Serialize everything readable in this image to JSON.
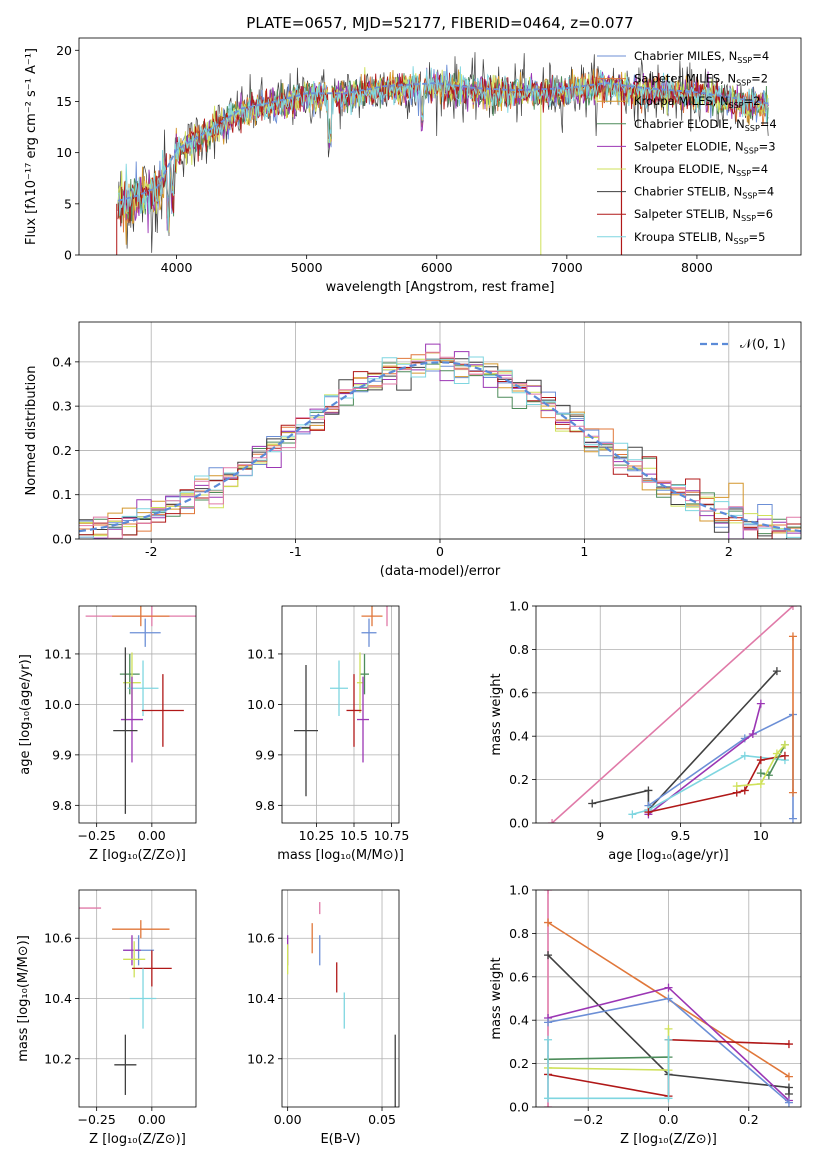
{
  "chart_data": [
    {
      "id": "spectrum",
      "type": "line",
      "title": "PLATE=0657, MJD=52177, FIBERID=0464, z=0.077",
      "xlabel": "wavelength [Angstrom, rest frame]",
      "ylabel": "Flux [fλ10⁻¹⁷ erg cm⁻² s⁻¹ A⁻¹]",
      "xlim": [
        3250,
        8800
      ],
      "ylim": [
        0,
        21.2
      ],
      "xticks": [
        4000,
        5000,
        6000,
        7000,
        8000
      ],
      "yticks": [
        0,
        5,
        10,
        15,
        20
      ],
      "grid": false,
      "legend_position": "right",
      "continuum": [
        {
          "x": 3550,
          "y": 5.0
        },
        {
          "x": 3700,
          "y": 5.5
        },
        {
          "x": 3850,
          "y": 6.3
        },
        {
          "x": 4000,
          "y": 10.0
        },
        {
          "x": 4200,
          "y": 11.5
        },
        {
          "x": 4500,
          "y": 14.0
        },
        {
          "x": 4800,
          "y": 14.8
        },
        {
          "x": 5000,
          "y": 15.5
        },
        {
          "x": 5300,
          "y": 15.5
        },
        {
          "x": 5600,
          "y": 16.2
        },
        {
          "x": 6000,
          "y": 16.5
        },
        {
          "x": 6300,
          "y": 16.0
        },
        {
          "x": 6600,
          "y": 15.8
        },
        {
          "x": 7000,
          "y": 16.0
        },
        {
          "x": 7300,
          "y": 16.5
        },
        {
          "x": 7600,
          "y": 16.0
        },
        {
          "x": 8000,
          "y": 15.6
        },
        {
          "x": 8300,
          "y": 15.0
        },
        {
          "x": 8550,
          "y": 14.5
        }
      ],
      "series": [
        {
          "name": "Chabrier MILES",
          "nssp": "4",
          "color": "#6c8fd6"
        },
        {
          "name": "Salpeter MILES",
          "nssp": "2",
          "color": "#e0773a"
        },
        {
          "name": "Kroupa MILES",
          "nssp": "2",
          "color": "#d4962c"
        },
        {
          "name": "Chabrier ELODIE",
          "nssp": "4",
          "color": "#4d8c5a"
        },
        {
          "name": "Salpeter ELODIE",
          "nssp": "3",
          "color": "#9b36b4"
        },
        {
          "name": "Kroupa ELODIE",
          "nssp": "4",
          "color": "#cfe15a"
        },
        {
          "name": "Chabrier STELIB",
          "nssp": "4",
          "color": "#404040"
        },
        {
          "name": "Salpeter STELIB",
          "nssp": "6",
          "color": "#b01818"
        },
        {
          "name": "Kroupa STELIB",
          "nssp": "5",
          "color": "#7fd6e0"
        }
      ]
    },
    {
      "id": "residuals",
      "type": "histogram",
      "xlabel": "(data-model)/error",
      "ylabel": "Normed distribution",
      "xlim": [
        -2.5,
        2.5
      ],
      "ylim": [
        0,
        0.49
      ],
      "xticks": [
        -2,
        -1,
        0,
        1,
        2
      ],
      "yticks": [
        0.0,
        0.1,
        0.2,
        0.3,
        0.4
      ],
      "grid": true,
      "legend_label": "𝒩(0, 1)",
      "legend_position": "top-right",
      "bin_width": 0.1,
      "series_colors": [
        "#6c8fd6",
        "#e0773a",
        "#d4962c",
        "#4d8c5a",
        "#9b36b4",
        "#cfe15a",
        "#404040",
        "#b01818",
        "#7fd6e0",
        "#e07aa8"
      ]
    },
    {
      "id": "age_vs_Z",
      "type": "errorbar",
      "xlabel": "Z [log₁₀(Z/Z⊙)]",
      "ylabel": "age  [log₁₀(age/yr)]",
      "xlim": [
        -0.33,
        0.2
      ],
      "ylim": [
        9.765,
        10.195
      ],
      "xticks": [
        -0.25,
        0.0
      ],
      "xticklabels": [
        "−0.25",
        "0.00"
      ],
      "yticks": [
        9.8,
        9.9,
        10.0,
        10.1
      ],
      "grid": true,
      "points": [
        {
          "x": 0.0,
          "y": 10.175,
          "xerr": 0.3,
          "yerr": 0.02,
          "color": "#e07aa8"
        },
        {
          "x": -0.05,
          "y": 10.175,
          "xerr": 0.13,
          "yerr": 0.02,
          "color": "#e0773a"
        },
        {
          "x": -0.03,
          "y": 10.142,
          "xerr": 0.07,
          "yerr": 0.028,
          "color": "#6c8fd6"
        },
        {
          "x": -0.1,
          "y": 10.06,
          "xerr": 0.045,
          "yerr": 0.04,
          "color": "#4d8c5a"
        },
        {
          "x": -0.09,
          "y": 10.043,
          "xerr": 0.04,
          "yerr": 0.06,
          "color": "#cfe15a"
        },
        {
          "x": -0.04,
          "y": 10.032,
          "xerr": 0.07,
          "yerr": 0.055,
          "color": "#7fd6e0"
        },
        {
          "x": 0.05,
          "y": 9.988,
          "xerr": 0.095,
          "yerr": 0.072,
          "color": "#b01818"
        },
        {
          "x": -0.09,
          "y": 9.97,
          "xerr": 0.05,
          "yerr": 0.085,
          "color": "#9b36b4"
        },
        {
          "x": -0.12,
          "y": 9.948,
          "xerr": 0.055,
          "yerr": 0.165,
          "color": "#404040"
        }
      ]
    },
    {
      "id": "age_vs_mass",
      "type": "errorbar",
      "xlabel": "mass [log₁₀(M/M⊙)]",
      "ylabel": "",
      "xlim": [
        10.02,
        10.8
      ],
      "ylim": [
        9.765,
        10.195
      ],
      "xticks": [
        10.25,
        10.5,
        10.75
      ],
      "yticks": [
        9.8,
        9.9,
        10.0,
        10.1
      ],
      "grid": true,
      "points": [
        {
          "x": 10.72,
          "y": 10.175,
          "xerr": 0.0,
          "yerr": 0.02,
          "color": "#e07aa8"
        },
        {
          "x": 10.62,
          "y": 10.175,
          "xerr": 0.07,
          "yerr": 0.02,
          "color": "#e0773a"
        },
        {
          "x": 10.6,
          "y": 10.142,
          "xerr": 0.05,
          "yerr": 0.028,
          "color": "#6c8fd6"
        },
        {
          "x": 10.57,
          "y": 10.06,
          "xerr": 0.03,
          "yerr": 0.04,
          "color": "#4d8c5a"
        },
        {
          "x": 10.54,
          "y": 10.043,
          "xerr": 0.02,
          "yerr": 0.06,
          "color": "#cfe15a"
        },
        {
          "x": 10.4,
          "y": 10.032,
          "xerr": 0.06,
          "yerr": 0.055,
          "color": "#7fd6e0"
        },
        {
          "x": 10.5,
          "y": 9.988,
          "xerr": 0.05,
          "yerr": 0.072,
          "color": "#b01818"
        },
        {
          "x": 10.56,
          "y": 9.97,
          "xerr": 0.04,
          "yerr": 0.085,
          "color": "#9b36b4"
        },
        {
          "x": 10.18,
          "y": 9.948,
          "xerr": 0.08,
          "yerr": 0.13,
          "color": "#404040"
        }
      ]
    },
    {
      "id": "mw_vs_age",
      "type": "line",
      "xlabel": "age  [log₁₀(age/yr)]",
      "ylabel": "mass weight",
      "xlim": [
        8.6,
        10.25
      ],
      "ylim": [
        0,
        1.0
      ],
      "xticks": [
        9.0,
        9.5,
        10.0
      ],
      "yticks": [
        0.0,
        0.2,
        0.4,
        0.6,
        0.8,
        1.0
      ],
      "grid": true,
      "lines": [
        {
          "color": "#e07aa8",
          "pts": [
            [
              8.7,
              0.0
            ],
            [
              10.2,
              1.0
            ]
          ]
        },
        {
          "color": "#404040",
          "pts": [
            [
              8.95,
              0.09
            ],
            [
              9.3,
              0.15
            ],
            [
              9.3,
              0.06
            ],
            [
              10.1,
              0.7
            ]
          ]
        },
        {
          "color": "#6c8fd6",
          "pts": [
            [
              9.3,
              0.08
            ],
            [
              9.9,
              0.39
            ],
            [
              10.2,
              0.5
            ],
            [
              10.2,
              0.02
            ]
          ]
        },
        {
          "color": "#9b36b4",
          "pts": [
            [
              9.3,
              0.04
            ],
            [
              9.95,
              0.41
            ],
            [
              10.0,
              0.55
            ]
          ]
        },
        {
          "color": "#7fd6e0",
          "pts": [
            [
              9.2,
              0.04
            ],
            [
              9.3,
              0.06
            ],
            [
              9.9,
              0.31
            ],
            [
              10.15,
              0.29
            ]
          ]
        },
        {
          "color": "#b01818",
          "pts": [
            [
              9.3,
              0.05
            ],
            [
              9.85,
              0.14
            ],
            [
              9.9,
              0.15
            ],
            [
              10.0,
              0.29
            ],
            [
              10.15,
              0.31
            ]
          ]
        },
        {
          "color": "#4d8c5a",
          "pts": [
            [
              10.0,
              0.23
            ],
            [
              10.05,
              0.22
            ],
            [
              10.15,
              0.36
            ]
          ]
        },
        {
          "color": "#cfe15a",
          "pts": [
            [
              9.85,
              0.17
            ],
            [
              10.0,
              0.18
            ],
            [
              10.1,
              0.32
            ],
            [
              10.15,
              0.36
            ]
          ]
        },
        {
          "color": "#e0773a",
          "pts": [
            [
              10.2,
              0.14
            ],
            [
              10.2,
              0.86
            ]
          ]
        }
      ]
    },
    {
      "id": "mass_vs_Z",
      "type": "errorbar",
      "xlabel": "Z [log₁₀(Z/Z⊙)]",
      "ylabel": "mass [log₁₀(M/M⊙)]",
      "xlim": [
        -0.33,
        0.2
      ],
      "ylim": [
        10.04,
        10.76
      ],
      "xticks": [
        -0.25,
        0.0
      ],
      "xticklabels": [
        "−0.25",
        "0.00"
      ],
      "yticks": [
        10.2,
        10.4,
        10.6
      ],
      "grid": true,
      "points": [
        {
          "x": -0.28,
          "y": 10.7,
          "xerr": 0.05,
          "yerr": 0.0,
          "color": "#e07aa8"
        },
        {
          "x": -0.05,
          "y": 10.63,
          "xerr": 0.13,
          "yerr": 0.03,
          "color": "#e0773a"
        },
        {
          "x": -0.06,
          "y": 10.56,
          "xerr": 0.07,
          "yerr": 0.05,
          "color": "#6c8fd6"
        },
        {
          "x": -0.09,
          "y": 10.56,
          "xerr": 0.04,
          "yerr": 0.05,
          "color": "#9b36b4"
        },
        {
          "x": -0.08,
          "y": 10.53,
          "xerr": 0.05,
          "yerr": 0.06,
          "color": "#cfe15a"
        },
        {
          "x": 0.0,
          "y": 10.5,
          "xerr": 0.09,
          "yerr": 0.06,
          "color": "#b01818"
        },
        {
          "x": -0.04,
          "y": 10.4,
          "xerr": 0.06,
          "yerr": 0.1,
          "color": "#7fd6e0"
        },
        {
          "x": -0.12,
          "y": 10.18,
          "xerr": 0.05,
          "yerr": 0.1,
          "color": "#404040"
        }
      ]
    },
    {
      "id": "mass_vs_ebv",
      "type": "errorbar",
      "xlabel": "E(B-V)",
      "ylabel": "",
      "xlim": [
        -0.003,
        0.059
      ],
      "ylim": [
        10.04,
        10.76
      ],
      "xticks": [
        0.0,
        0.05
      ],
      "xticklabels": [
        "0.00",
        "0.05"
      ],
      "yticks": [
        10.2,
        10.4,
        10.6
      ],
      "grid": true,
      "points": [
        {
          "x": 0.017,
          "y": 10.7,
          "xerr": 0.0,
          "yerr": 0.02,
          "color": "#e07aa8"
        },
        {
          "x": 0.013,
          "y": 10.6,
          "xerr": 0.0,
          "yerr": 0.05,
          "color": "#e0773a"
        },
        {
          "x": 0.017,
          "y": 10.56,
          "xerr": 0.0,
          "yerr": 0.05,
          "color": "#6c8fd6"
        },
        {
          "x": 0.0,
          "y": 10.56,
          "xerr": 0.0,
          "yerr": 0.05,
          "color": "#9b36b4"
        },
        {
          "x": 0.0,
          "y": 10.53,
          "xerr": 0.0,
          "yerr": 0.05,
          "color": "#cfe15a"
        },
        {
          "x": 0.026,
          "y": 10.47,
          "xerr": 0.0,
          "yerr": 0.05,
          "color": "#b01818"
        },
        {
          "x": 0.03,
          "y": 10.36,
          "xerr": 0.0,
          "yerr": 0.06,
          "color": "#7fd6e0"
        },
        {
          "x": 0.057,
          "y": 10.16,
          "xerr": 0.0,
          "yerr": 0.12,
          "color": "#404040"
        }
      ]
    },
    {
      "id": "mw_vs_Z",
      "type": "line",
      "xlabel": "Z [log₁₀(Z/Z⊙)]",
      "ylabel": "mass weight",
      "xlim": [
        -0.33,
        0.33
      ],
      "ylim": [
        0,
        1.0
      ],
      "xticks": [
        -0.2,
        0.0,
        0.2
      ],
      "xticklabels": [
        "−0.2",
        "0.0",
        "0.2"
      ],
      "yticks": [
        0.0,
        0.2,
        0.4,
        0.6,
        0.8,
        1.0
      ],
      "grid": true,
      "lines": [
        {
          "color": "#e07aa8",
          "pts": [
            [
              -0.3,
              0.0
            ],
            [
              -0.3,
              1.0
            ]
          ]
        },
        {
          "color": "#e0773a",
          "pts": [
            [
              -0.3,
              0.85
            ],
            [
              0.3,
              0.14
            ]
          ]
        },
        {
          "color": "#404040",
          "pts": [
            [
              -0.3,
              0.7
            ],
            [
              0.0,
              0.15
            ],
            [
              0.3,
              0.09
            ],
            [
              0.3,
              0.06
            ]
          ]
        },
        {
          "color": "#9b36b4",
          "pts": [
            [
              -0.3,
              0.41
            ],
            [
              0.0,
              0.55
            ],
            [
              0.3,
              0.03
            ]
          ]
        },
        {
          "color": "#6c8fd6",
          "pts": [
            [
              -0.3,
              0.39
            ],
            [
              0.0,
              0.5
            ],
            [
              0.3,
              0.02
            ]
          ]
        },
        {
          "color": "#b01818",
          "pts": [
            [
              -0.3,
              0.15
            ],
            [
              0.0,
              0.05
            ],
            [
              0.0,
              0.31
            ],
            [
              0.3,
              0.29
            ]
          ]
        },
        {
          "color": "#4d8c5a",
          "pts": [
            [
              -0.3,
              0.22
            ],
            [
              0.0,
              0.23
            ]
          ]
        },
        {
          "color": "#cfe15a",
          "pts": [
            [
              -0.3,
              0.18
            ],
            [
              0.0,
              0.17
            ],
            [
              0.0,
              0.36
            ]
          ]
        },
        {
          "color": "#7fd6e0",
          "pts": [
            [
              -0.3,
              0.31
            ],
            [
              -0.3,
              0.04
            ],
            [
              0.0,
              0.04
            ],
            [
              0.0,
              0.31
            ]
          ]
        }
      ]
    }
  ]
}
